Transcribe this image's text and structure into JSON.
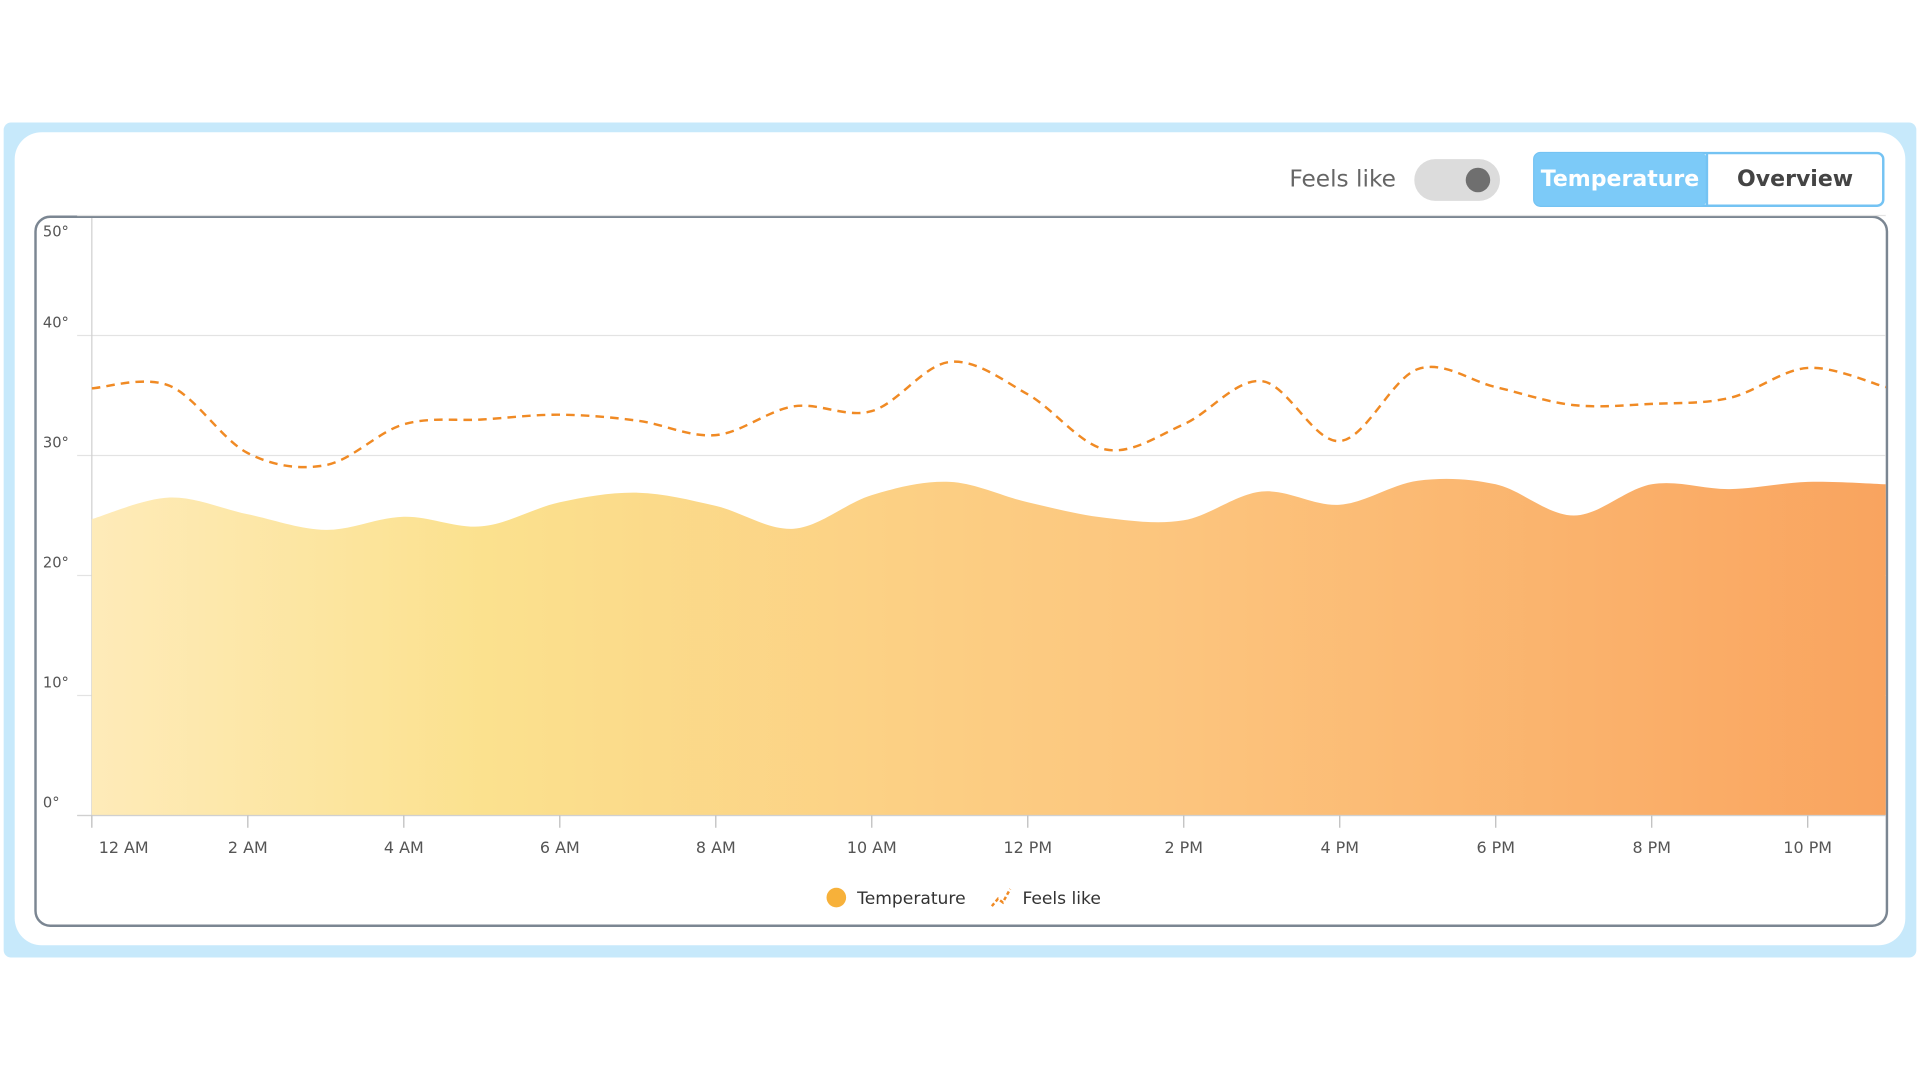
{
  "controls": {
    "feels_like_label": "Feels like",
    "tabs": [
      "Temperature",
      "Overview"
    ]
  },
  "chart_data": {
    "type": "line",
    "categories": [
      "12 AM",
      null,
      "2 AM",
      null,
      "4 AM",
      null,
      "6 AM",
      null,
      "8 AM",
      null,
      "10 AM",
      null,
      "12 PM",
      null,
      "2 PM",
      null,
      "4 PM",
      null,
      "6 PM",
      null,
      "8 PM",
      null,
      "10 PM",
      null
    ],
    "series": [
      {
        "name": "Temperature",
        "color": "#f7b13a",
        "style": "area",
        "values": [
          24.7,
          26.5,
          25.1,
          23.8,
          24.9,
          24.1,
          26.1,
          26.9,
          25.8,
          23.9,
          26.7,
          27.8,
          26.1,
          24.8,
          24.6,
          27.0,
          25.9,
          27.9,
          27.6,
          25.0,
          27.6,
          27.2,
          27.8,
          27.6
        ]
      },
      {
        "name": "Feels like",
        "color": "#f08a24",
        "style": "dashed",
        "values": [
          35.6,
          35.8,
          30.2,
          29.2,
          32.6,
          33.0,
          33.4,
          32.9,
          31.7,
          34.1,
          33.7,
          37.8,
          35.1,
          30.5,
          32.6,
          36.2,
          31.2,
          37.2,
          35.7,
          34.2,
          34.3,
          34.8,
          37.3,
          35.7
        ]
      }
    ],
    "ylim": [
      0,
      50
    ],
    "yticks": [
      {
        "value": 0,
        "label": "0°"
      },
      {
        "value": 10,
        "label": "10°"
      },
      {
        "value": 20,
        "label": "20°"
      },
      {
        "value": 30,
        "label": "30°"
      },
      {
        "value": 40,
        "label": "40°"
      },
      {
        "value": 50,
        "label": "50°"
      }
    ],
    "grid": true
  }
}
